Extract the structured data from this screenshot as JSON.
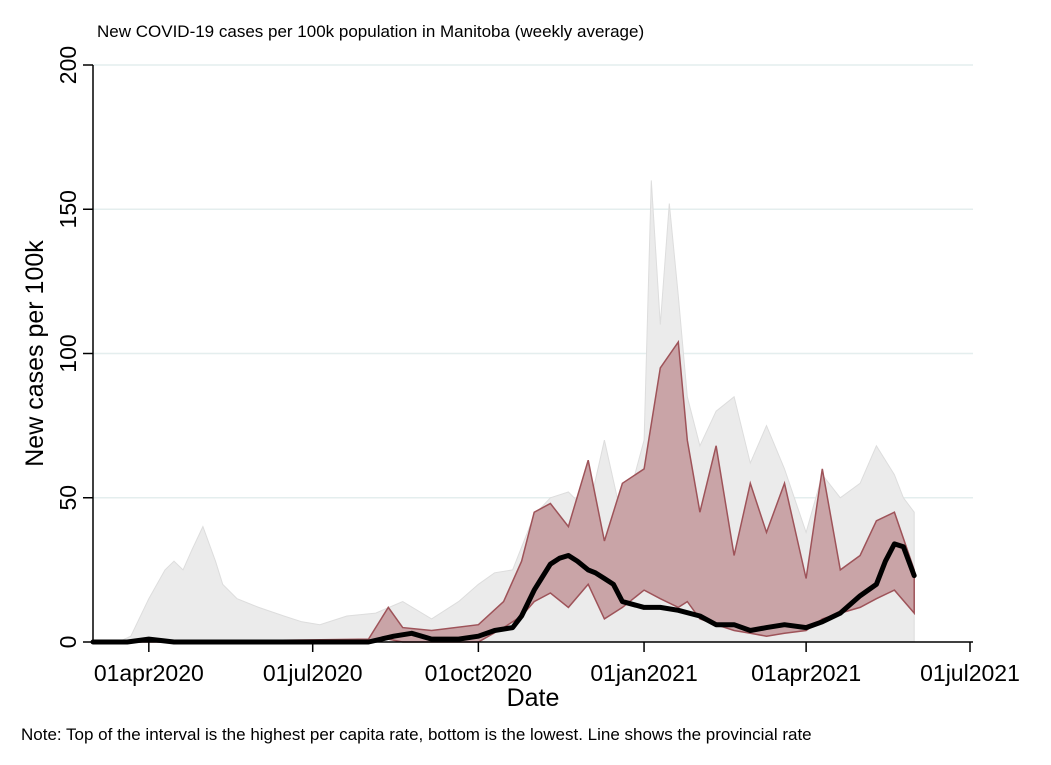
{
  "chart_data": {
    "type": "area",
    "title": "New COVID-19 cases per 100k population in Manitoba (weekly average)",
    "xlabel": "Date",
    "ylabel": "New cases per 100k",
    "note": "Note: Top of the interval is the highest per capita rate, bottom is the lowest. Line shows the provincial rate",
    "x_ticks": [
      "01apr2020",
      "01jul2020",
      "01oct2020",
      "01jan2021",
      "01apr2021",
      "01jul2021"
    ],
    "x_range": [
      "2020-03-01",
      "2021-07-01"
    ],
    "y_ticks": [
      0,
      50,
      100,
      150,
      200
    ],
    "ylim": [
      0,
      200
    ],
    "grid": "horizontal",
    "series": [
      {
        "role": "overall-range",
        "color": "#ebebeb",
        "x": [
          "2020-03-01",
          "2020-03-15",
          "2020-03-22",
          "2020-04-01",
          "2020-04-10",
          "2020-04-15",
          "2020-04-20",
          "2020-04-25",
          "2020-05-01",
          "2020-05-08",
          "2020-05-12",
          "2020-05-20",
          "2020-06-01",
          "2020-06-15",
          "2020-06-25",
          "2020-07-05",
          "2020-07-20",
          "2020-08-05",
          "2020-08-20",
          "2020-09-05",
          "2020-09-20",
          "2020-10-01",
          "2020-10-10",
          "2020-10-20",
          "2020-11-01",
          "2020-11-10",
          "2020-11-20",
          "2020-12-01",
          "2020-12-10",
          "2020-12-20",
          "2021-01-01",
          "2021-01-05",
          "2021-01-10",
          "2021-01-15",
          "2021-01-20",
          "2021-01-25",
          "2021-02-01",
          "2021-02-10",
          "2021-02-20",
          "2021-03-01",
          "2021-03-10",
          "2021-03-20",
          "2021-04-01",
          "2021-04-10",
          "2021-04-20",
          "2021-05-01",
          "2021-05-10",
          "2021-05-20",
          "2021-05-25",
          "2021-05-31"
        ],
        "high": [
          0,
          0,
          2,
          15,
          25,
          28,
          25,
          32,
          40,
          28,
          20,
          15,
          12,
          9,
          7,
          6,
          9,
          10,
          14,
          8,
          14,
          20,
          24,
          25,
          44,
          50,
          52,
          45,
          70,
          42,
          70,
          160,
          110,
          152,
          120,
          85,
          68,
          80,
          85,
          62,
          75,
          60,
          38,
          58,
          50,
          55,
          68,
          58,
          50,
          45
        ],
        "low": [
          0,
          0,
          0,
          0,
          0,
          0,
          0,
          0,
          0,
          0,
          0,
          0,
          0,
          0,
          0,
          0,
          0,
          0,
          0,
          0,
          0,
          0,
          0,
          0,
          0,
          0,
          0,
          0,
          0,
          0,
          0,
          0,
          0,
          0,
          0,
          0,
          0,
          0,
          0,
          0,
          0,
          0,
          0,
          0,
          0,
          0,
          0,
          0,
          0,
          0
        ]
      },
      {
        "role": "highest-lowest-interval",
        "color": "#c9a4a7",
        "x": [
          "2020-03-01",
          "2020-04-01",
          "2020-08-01",
          "2020-08-12",
          "2020-08-20",
          "2020-09-05",
          "2020-10-01",
          "2020-10-15",
          "2020-10-25",
          "2020-11-01",
          "2020-11-10",
          "2020-11-20",
          "2020-12-01",
          "2020-12-10",
          "2020-12-20",
          "2021-01-01",
          "2021-01-10",
          "2021-01-20",
          "2021-01-25",
          "2021-02-01",
          "2021-02-10",
          "2021-02-20",
          "2021-03-01",
          "2021-03-10",
          "2021-03-20",
          "2021-04-01",
          "2021-04-10",
          "2021-04-20",
          "2021-05-01",
          "2021-05-10",
          "2021-05-20",
          "2021-05-31"
        ],
        "high": [
          0,
          0,
          1,
          12,
          5,
          4,
          6,
          14,
          28,
          45,
          48,
          40,
          63,
          35,
          55,
          60,
          95,
          104,
          70,
          45,
          68,
          30,
          55,
          38,
          55,
          22,
          60,
          25,
          30,
          42,
          45,
          25
        ],
        "low": [
          0,
          0,
          0,
          1,
          0,
          0,
          0,
          5,
          9,
          14,
          17,
          12,
          20,
          8,
          12,
          18,
          15,
          12,
          14,
          8,
          6,
          4,
          3,
          2,
          3,
          4,
          8,
          10,
          12,
          15,
          18,
          10
        ]
      },
      {
        "name": "Provincial rate",
        "color": "#000000",
        "x": [
          "2020-03-01",
          "2020-03-20",
          "2020-04-01",
          "2020-04-15",
          "2020-05-01",
          "2020-06-01",
          "2020-07-01",
          "2020-07-20",
          "2020-08-01",
          "2020-08-15",
          "2020-08-25",
          "2020-09-05",
          "2020-09-20",
          "2020-10-01",
          "2020-10-10",
          "2020-10-20",
          "2020-10-25",
          "2020-11-01",
          "2020-11-05",
          "2020-11-10",
          "2020-11-15",
          "2020-11-20",
          "2020-11-25",
          "2020-12-01",
          "2020-12-05",
          "2020-12-10",
          "2020-12-15",
          "2020-12-20",
          "2021-01-01",
          "2021-01-10",
          "2021-01-20",
          "2021-02-01",
          "2021-02-10",
          "2021-02-20",
          "2021-03-01",
          "2021-03-10",
          "2021-03-20",
          "2021-04-01",
          "2021-04-10",
          "2021-04-20",
          "2021-05-01",
          "2021-05-10",
          "2021-05-15",
          "2021-05-20",
          "2021-05-25",
          "2021-05-31"
        ],
        "values": [
          0,
          0,
          1,
          0,
          0,
          0,
          0,
          0,
          0,
          2,
          3,
          1,
          1,
          2,
          4,
          5,
          9,
          18,
          22,
          27,
          29,
          30,
          28,
          25,
          24,
          22,
          20,
          14,
          12,
          12,
          11,
          9,
          6,
          6,
          4,
          5,
          6,
          5,
          7,
          10,
          16,
          20,
          28,
          34,
          33,
          23
        ]
      }
    ]
  }
}
